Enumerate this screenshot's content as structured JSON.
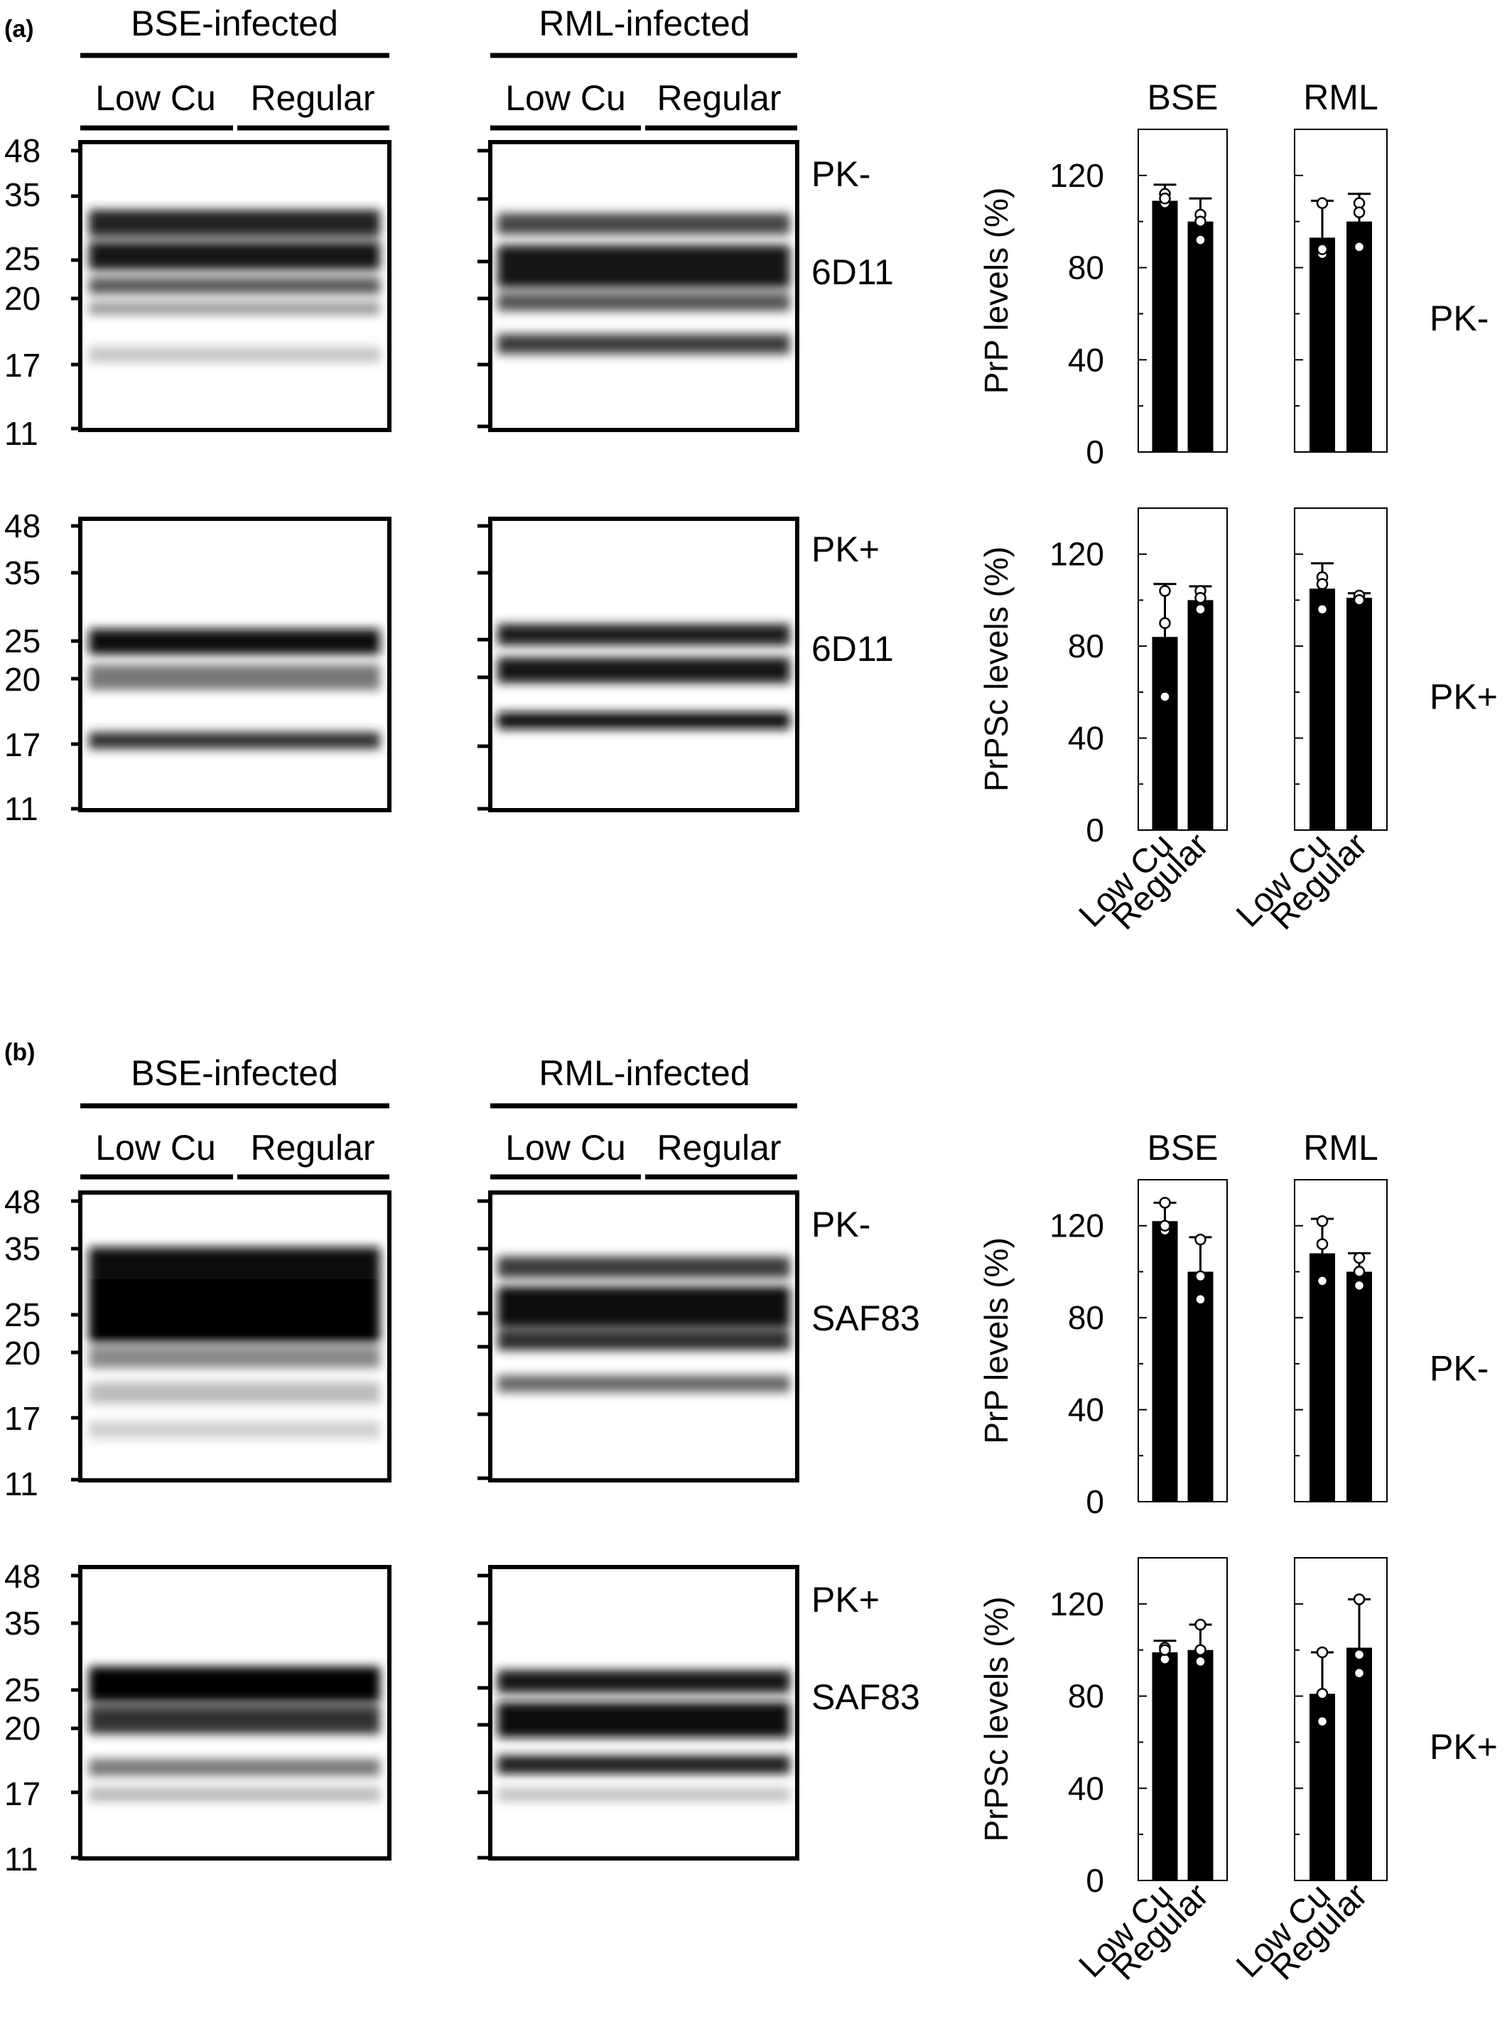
{
  "figure": {
    "panels": [
      {
        "label": "(a)",
        "infection_labels": [
          "BSE-infected",
          "RML-infected"
        ],
        "group_labels": [
          "Low Cu",
          "Regular"
        ],
        "blot_rows": [
          {
            "pk_label": "PK-",
            "antibody": "6D11",
            "mw_markers": [
              "48",
              "35",
              "25",
              "20",
              "17",
              "11"
            ]
          },
          {
            "pk_label": "PK+",
            "antibody": "6D11",
            "mw_markers": [
              "48",
              "35",
              "25",
              "20",
              "17",
              "11"
            ]
          }
        ]
      },
      {
        "label": "(b)",
        "infection_labels": [
          "BSE-infected",
          "RML-infected"
        ],
        "group_labels": [
          "Low Cu",
          "Regular"
        ],
        "blot_rows": [
          {
            "pk_label": "PK-",
            "antibody": "SAF83",
            "mw_markers": [
              "48",
              "35",
              "25",
              "20",
              "17",
              "11"
            ]
          },
          {
            "pk_label": "PK+",
            "antibody": "SAF83",
            "mw_markers": [
              "48",
              "35",
              "25",
              "20",
              "17",
              "11"
            ]
          }
        ]
      }
    ]
  },
  "chart_data": [
    {
      "type": "bar",
      "panel": "(a)",
      "row": "PK-",
      "ylabel": "PrP levels (%)",
      "ylim": [
        0,
        140
      ],
      "yticks": [
        "0",
        "40",
        "80",
        "120"
      ],
      "facets": [
        "BSE",
        "RML"
      ],
      "categories": [
        "Low Cu",
        "Regular"
      ],
      "series": [
        {
          "name": "BSE",
          "values": [
            109,
            100
          ],
          "error": [
            7,
            10
          ],
          "points": [
            [
              108,
              112,
              110
            ],
            [
              92,
              103,
              100
            ]
          ]
        },
        {
          "name": "RML",
          "values": [
            93,
            100
          ],
          "error": [
            16,
            12
          ],
          "points": [
            [
              108,
              86,
              88
            ],
            [
              108,
              89,
              104
            ]
          ]
        }
      ]
    },
    {
      "type": "bar",
      "panel": "(a)",
      "row": "PK+",
      "ylabel": "PrPSc levels (%)",
      "ylim": [
        0,
        140
      ],
      "yticks": [
        "0",
        "40",
        "80",
        "120"
      ],
      "facets": [
        "BSE",
        "RML"
      ],
      "categories": [
        "Low Cu",
        "Regular"
      ],
      "series": [
        {
          "name": "BSE",
          "values": [
            84,
            100
          ],
          "error": [
            23,
            6
          ],
          "points": [
            [
              104,
              90,
              58
            ],
            [
              96,
              104,
              101
            ]
          ]
        },
        {
          "name": "RML",
          "values": [
            105,
            101
          ],
          "error": [
            11,
            2
          ],
          "points": [
            [
              110,
              96,
              107
            ],
            [
              101,
              102,
              100
            ]
          ]
        }
      ]
    },
    {
      "type": "bar",
      "panel": "(b)",
      "row": "PK-",
      "ylabel": "PrP levels (%)",
      "ylim": [
        0,
        140
      ],
      "yticks": [
        "0",
        "40",
        "80",
        "120"
      ],
      "facets": [
        "BSE",
        "RML"
      ],
      "categories": [
        "Low Cu",
        "Regular"
      ],
      "series": [
        {
          "name": "BSE",
          "values": [
            122,
            100
          ],
          "error": [
            8,
            15
          ],
          "points": [
            [
              130,
              118,
              120
            ],
            [
              114,
              98,
              88
            ]
          ]
        },
        {
          "name": "RML",
          "values": [
            108,
            100
          ],
          "error": [
            15,
            8
          ],
          "points": [
            [
              122,
              112,
              96
            ],
            [
              106,
              100,
              94
            ]
          ]
        }
      ]
    },
    {
      "type": "bar",
      "panel": "(b)",
      "row": "PK+",
      "ylabel": "PrPSc levels (%)",
      "ylim": [
        0,
        140
      ],
      "yticks": [
        "0",
        "40",
        "80",
        "120"
      ],
      "facets": [
        "BSE",
        "RML"
      ],
      "categories": [
        "Low Cu",
        "Regular"
      ],
      "series": [
        {
          "name": "BSE",
          "values": [
            99,
            100
          ],
          "error": [
            5,
            11
          ],
          "points": [
            [
              101,
              96,
              100
            ],
            [
              111,
              100,
              95
            ]
          ]
        },
        {
          "name": "RML",
          "values": [
            81,
            101
          ],
          "error": [
            18,
            21
          ],
          "points": [
            [
              99,
              81,
              69
            ],
            [
              122,
              98,
              90
            ]
          ]
        }
      ]
    }
  ],
  "colors": {
    "bar": "#000000",
    "background": "#ffffff"
  }
}
